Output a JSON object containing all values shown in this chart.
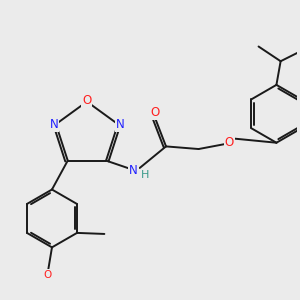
{
  "bg_color": "#ebebeb",
  "atom_colors": {
    "N": "#2020ff",
    "O": "#ff2020",
    "NH": "#3a9a8a"
  },
  "bond_color": "#1a1a1a",
  "bond_width": 1.4,
  "dbo": 0.055
}
